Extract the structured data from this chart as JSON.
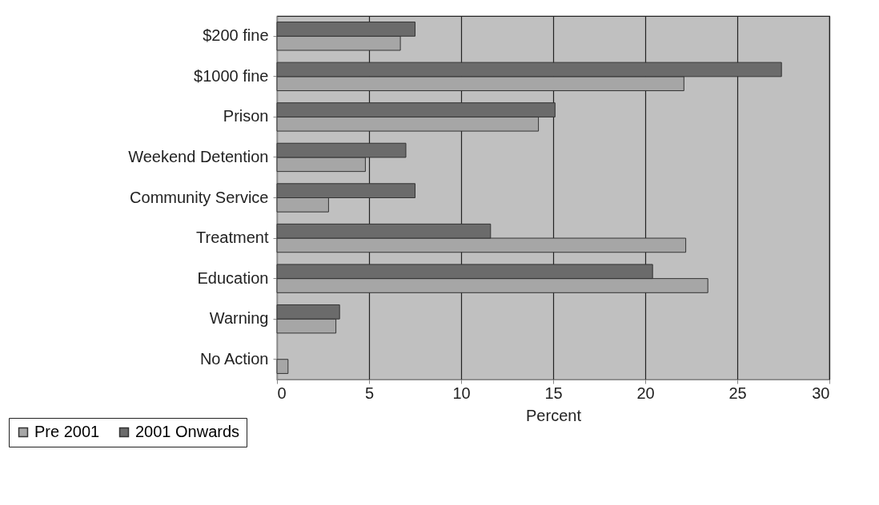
{
  "chart_data": {
    "type": "bar",
    "orientation": "horizontal",
    "xlabel": "Percent",
    "categories": [
      "$200 fine",
      "$1000 fine",
      "Prison",
      "Weekend Detention",
      "Community Service",
      "Treatment",
      "Education",
      "Warning",
      "No Action"
    ],
    "series": [
      {
        "name": "Pre 2001",
        "color": "#a6a6a6",
        "values": [
          6.7,
          22.1,
          14.2,
          4.8,
          2.8,
          22.2,
          23.4,
          3.2,
          0.6
        ]
      },
      {
        "name": "2001 Onwards",
        "color": "#6b6b6b",
        "values": [
          7.5,
          27.4,
          15.1,
          7.0,
          7.5,
          11.6,
          20.4,
          3.4,
          null
        ]
      }
    ],
    "xlim": [
      0,
      30
    ],
    "xticks": [
      0,
      5,
      10,
      15,
      20,
      25,
      30
    ],
    "grid": "x",
    "legend": "bottom left"
  }
}
